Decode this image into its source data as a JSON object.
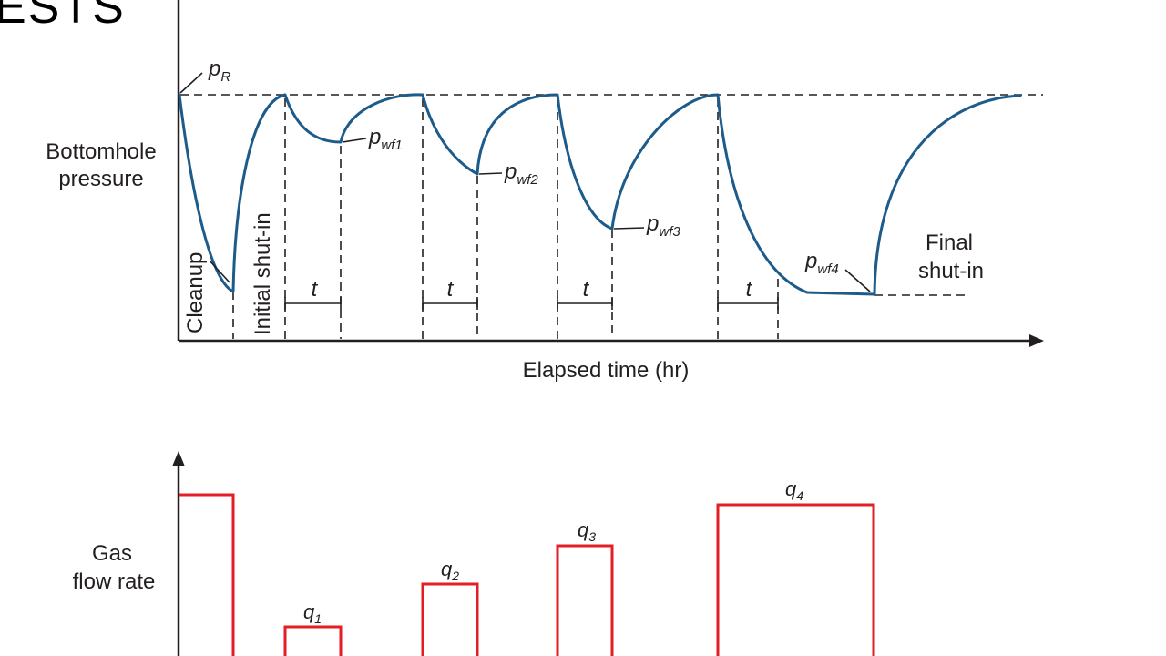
{
  "slide": {
    "title_fragment": "ESTS"
  },
  "pressure_chart": {
    "ylabel_line1": "Bottomhole",
    "ylabel_line2": "pressure",
    "xlabel": "Elapsed time (hr)",
    "reservoir_pressure": {
      "p": "p",
      "sub": "R"
    },
    "flowing_pressures": [
      {
        "p": "p",
        "sub": "wf1"
      },
      {
        "p": "p",
        "sub": "wf2"
      },
      {
        "p": "p",
        "sub": "wf3"
      },
      {
        "p": "p",
        "sub": "wf4"
      }
    ],
    "period_labels": {
      "cleanup": "Cleanup",
      "initial_shutin": "Initial shut-in",
      "final_shutin_line1": "Final",
      "final_shutin_line2": "shut-in"
    },
    "duration_label": "t"
  },
  "rate_chart": {
    "ylabel_line1": "Gas",
    "ylabel_line2": "flow rate",
    "rates": [
      {
        "q": "q",
        "sub": "1"
      },
      {
        "q": "q",
        "sub": "2"
      },
      {
        "q": "q",
        "sub": "3"
      },
      {
        "q": "q",
        "sub": "4"
      }
    ]
  }
}
